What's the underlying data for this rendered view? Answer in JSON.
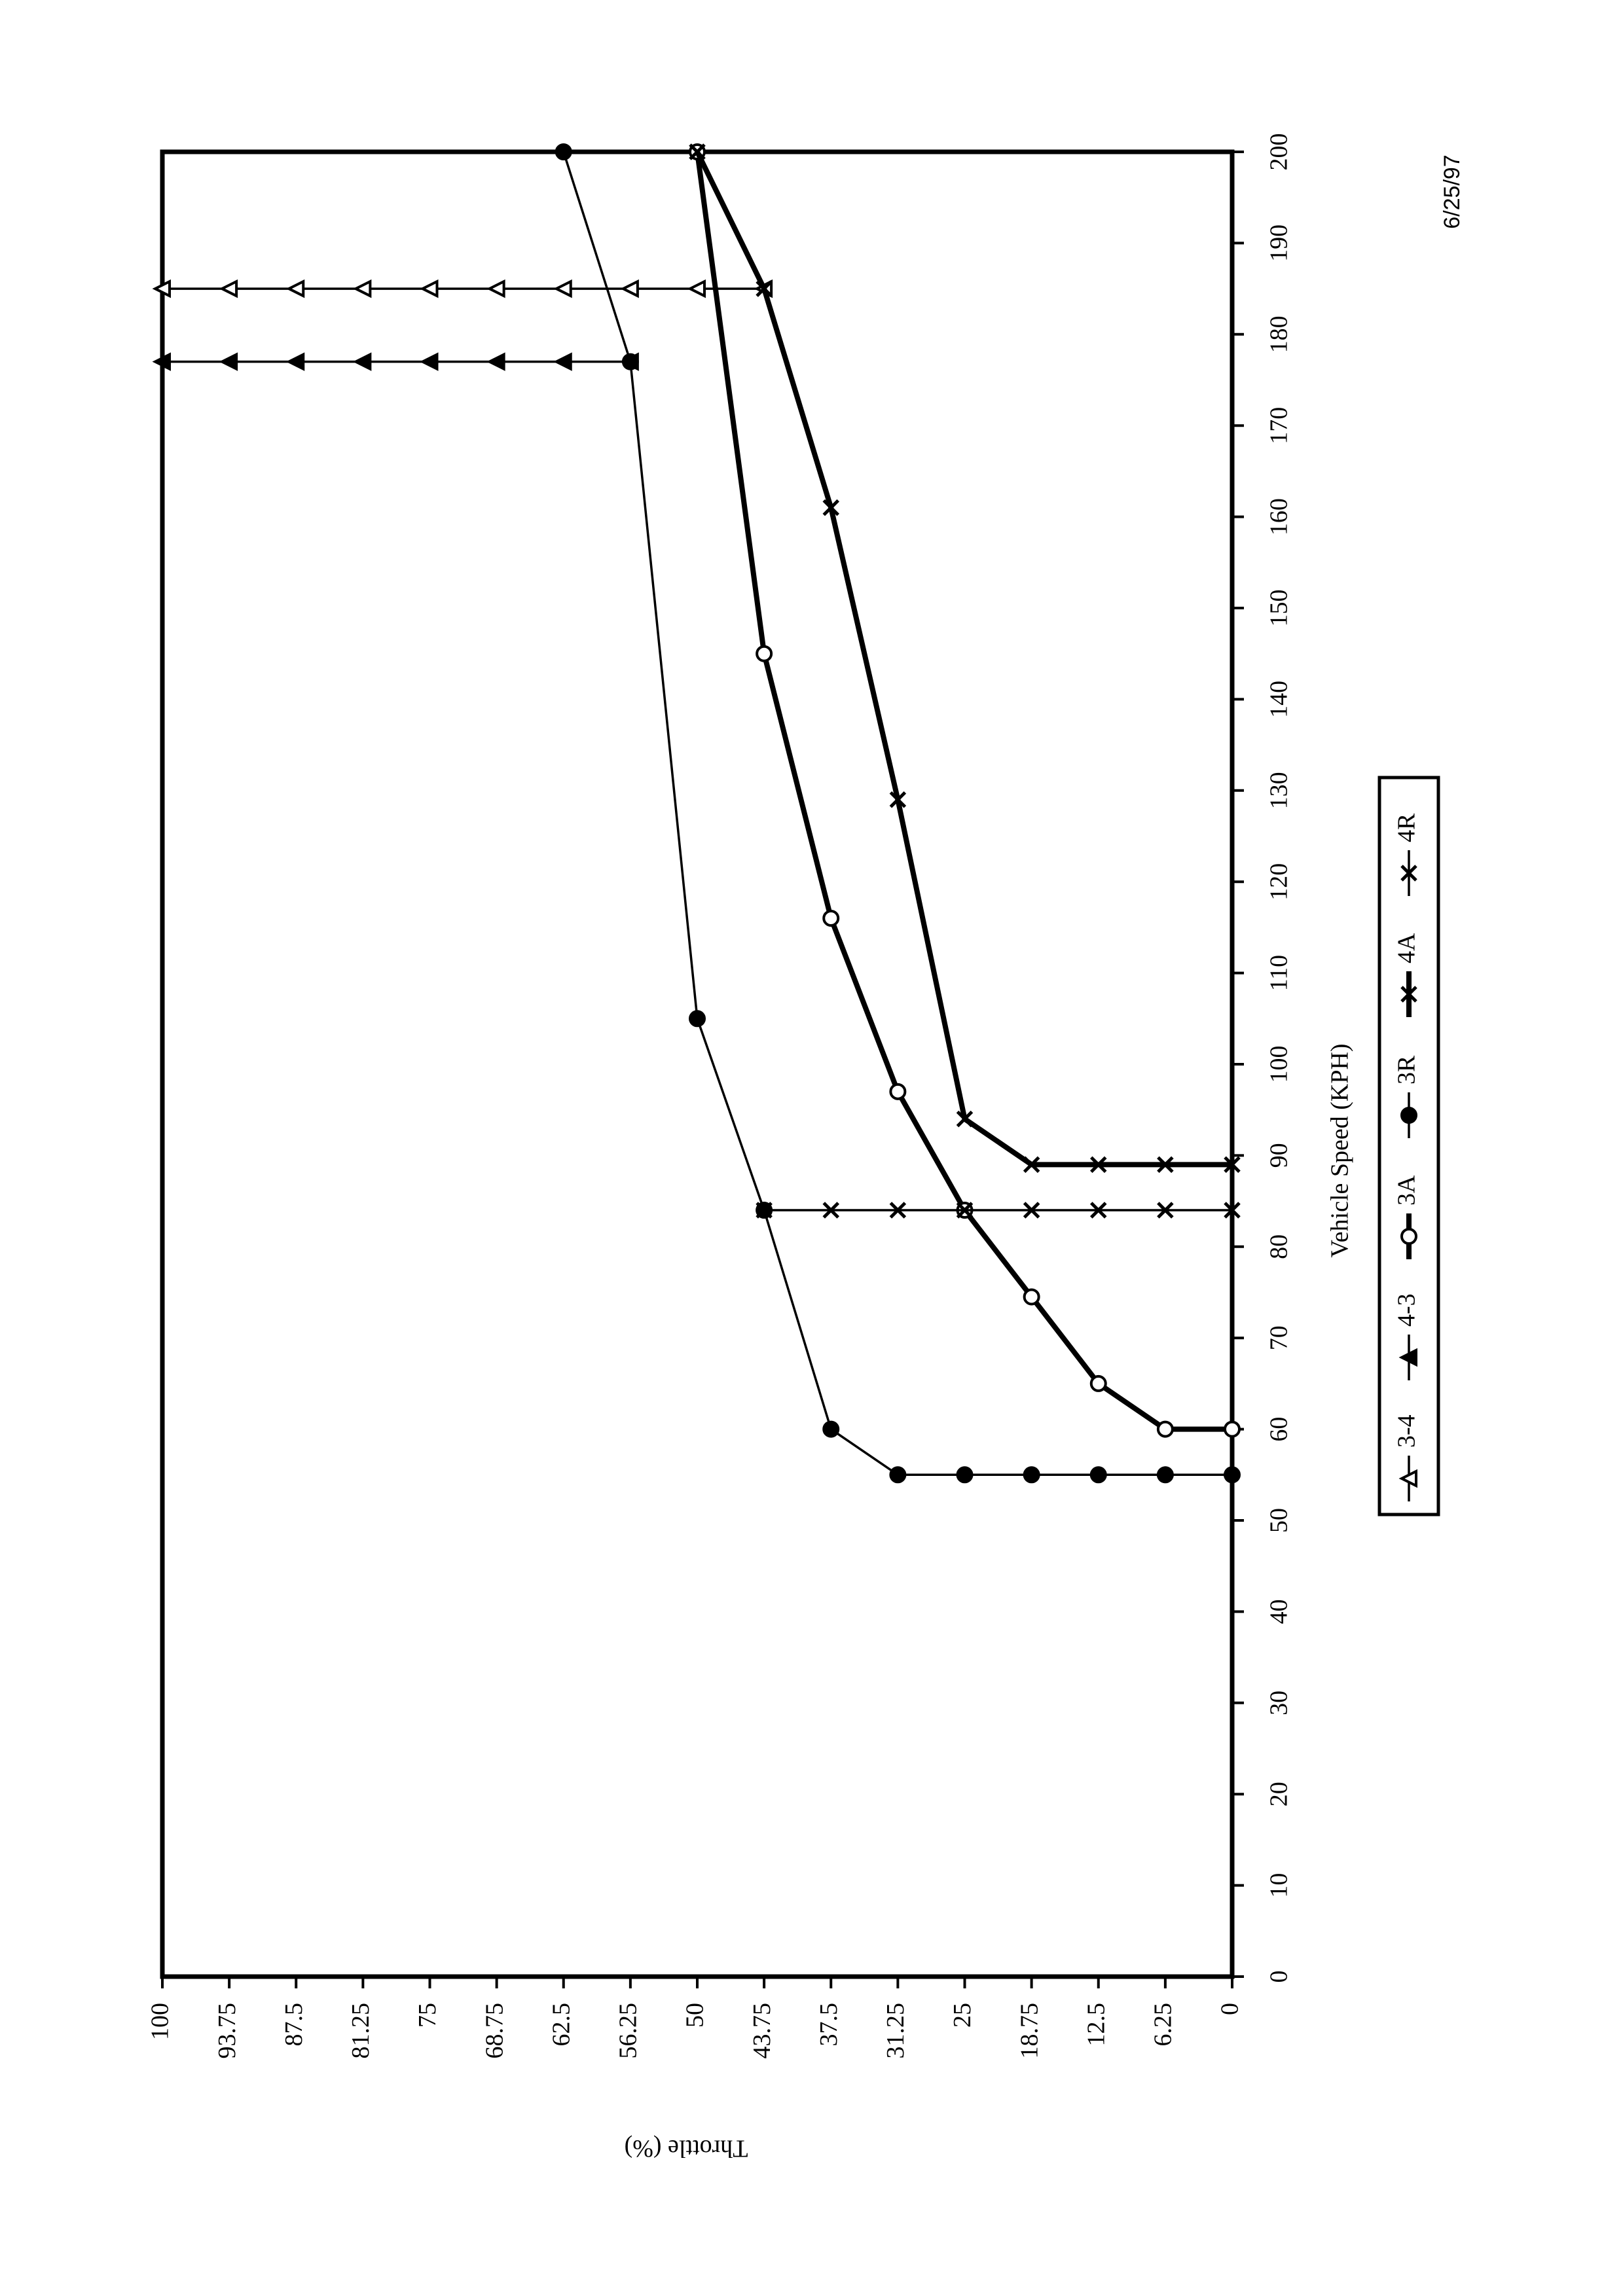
{
  "chart_data": {
    "type": "line",
    "x_label": "Vehicle Speed (KPH)",
    "y_label": "Throttle (%)",
    "annotation": "6/25/97",
    "xlim": [
      0,
      200
    ],
    "xticks": [
      0,
      10,
      20,
      30,
      40,
      50,
      60,
      70,
      80,
      90,
      100,
      110,
      120,
      130,
      140,
      150,
      160,
      170,
      180,
      190,
      200
    ],
    "ylim": [
      0,
      100
    ],
    "yticks": [
      0,
      6.25,
      12.5,
      18.75,
      25,
      31.25,
      37.5,
      43.75,
      50,
      56.25,
      62.5,
      68.75,
      75,
      81.25,
      87.5,
      93.75,
      100
    ],
    "series": [
      {
        "name": "3-4",
        "color": "#000000",
        "marker": "open-triangle",
        "line_width": "thin",
        "x": [
          185,
          185,
          185,
          185,
          185,
          185,
          185,
          185,
          185,
          185
        ],
        "values": [
          100,
          93.75,
          87.5,
          81.25,
          75,
          68.75,
          62.5,
          56.25,
          50,
          43.75
        ]
      },
      {
        "name": "4-3",
        "color": "#000000",
        "marker": "filled-triangle",
        "line_width": "thin",
        "x": [
          177,
          177,
          177,
          177,
          177,
          177,
          177,
          177
        ],
        "values": [
          100,
          93.75,
          87.5,
          81.25,
          75,
          68.75,
          62.5,
          56.25
        ]
      },
      {
        "name": "3A",
        "color": "#000000",
        "marker": "open-circle",
        "line_width": "thick",
        "x": [
          200,
          145,
          116,
          97,
          84,
          74.5,
          65,
          60,
          60
        ],
        "values": [
          50,
          43.75,
          37.5,
          31.25,
          25,
          18.75,
          12.5,
          6.25,
          0
        ]
      },
      {
        "name": "3R",
        "color": "#000000",
        "marker": "filled-circle",
        "line_width": "thin",
        "x": [
          200,
          177,
          105,
          84,
          60,
          55,
          55,
          55,
          55,
          55,
          55
        ],
        "values": [
          62.5,
          56.25,
          50,
          43.75,
          37.5,
          31.25,
          25,
          18.75,
          12.5,
          6.25,
          0
        ]
      },
      {
        "name": "4A",
        "color": "#000000",
        "marker": "x",
        "line_width": "thick",
        "x": [
          200,
          185,
          161,
          129,
          94,
          89,
          89,
          89,
          89
        ],
        "values": [
          50,
          43.75,
          37.5,
          31.25,
          25,
          18.75,
          12.5,
          6.25,
          0
        ]
      },
      {
        "name": "4R",
        "color": "#000000",
        "marker": "x",
        "line_width": "thin",
        "x": [
          84,
          84,
          84,
          84,
          84,
          84,
          84,
          84
        ],
        "values": [
          43.75,
          37.5,
          31.25,
          25,
          18.75,
          12.5,
          6.25,
          0
        ]
      }
    ]
  }
}
